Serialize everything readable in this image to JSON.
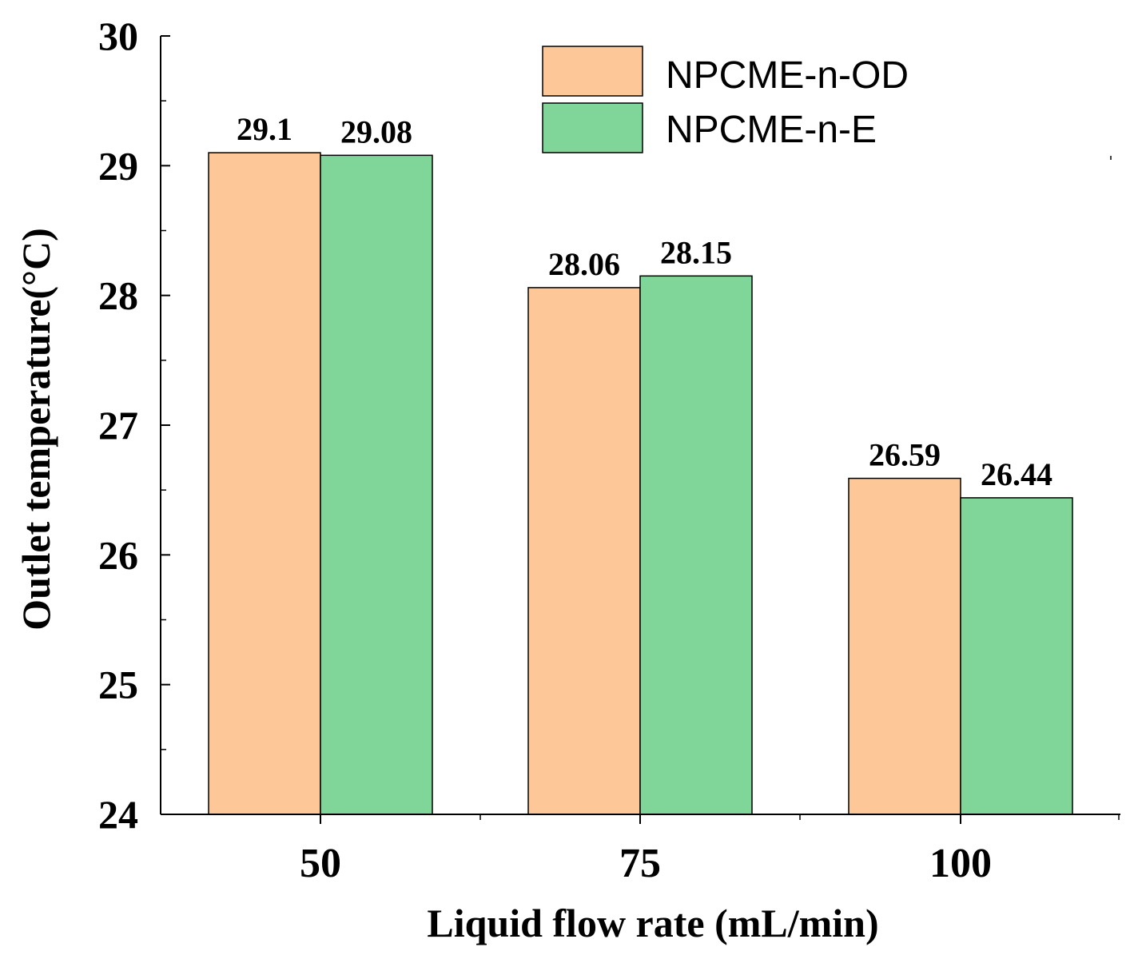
{
  "chart_data": {
    "type": "bar",
    "title": "",
    "xlabel": "Liquid flow rate (mL/min)",
    "ylabel": "Outlet temperature(°C)",
    "categories": [
      "50",
      "75",
      "100"
    ],
    "ylim": [
      24,
      30
    ],
    "yticks": [
      "24",
      "25",
      "26",
      "27",
      "28",
      "29",
      "30"
    ],
    "series": [
      {
        "name": "NPCME-n-OD",
        "color": "#FDC797",
        "values": [
          29.1,
          28.06,
          26.59
        ],
        "labels": [
          "29.1",
          "28.06",
          "26.59"
        ]
      },
      {
        "name": "NPCME-n-E",
        "color": "#80D699",
        "values": [
          29.08,
          28.15,
          26.44
        ],
        "labels": [
          "29.08",
          "28.15",
          "26.44"
        ]
      }
    ],
    "legend_position": "top-right",
    "grid": false
  }
}
